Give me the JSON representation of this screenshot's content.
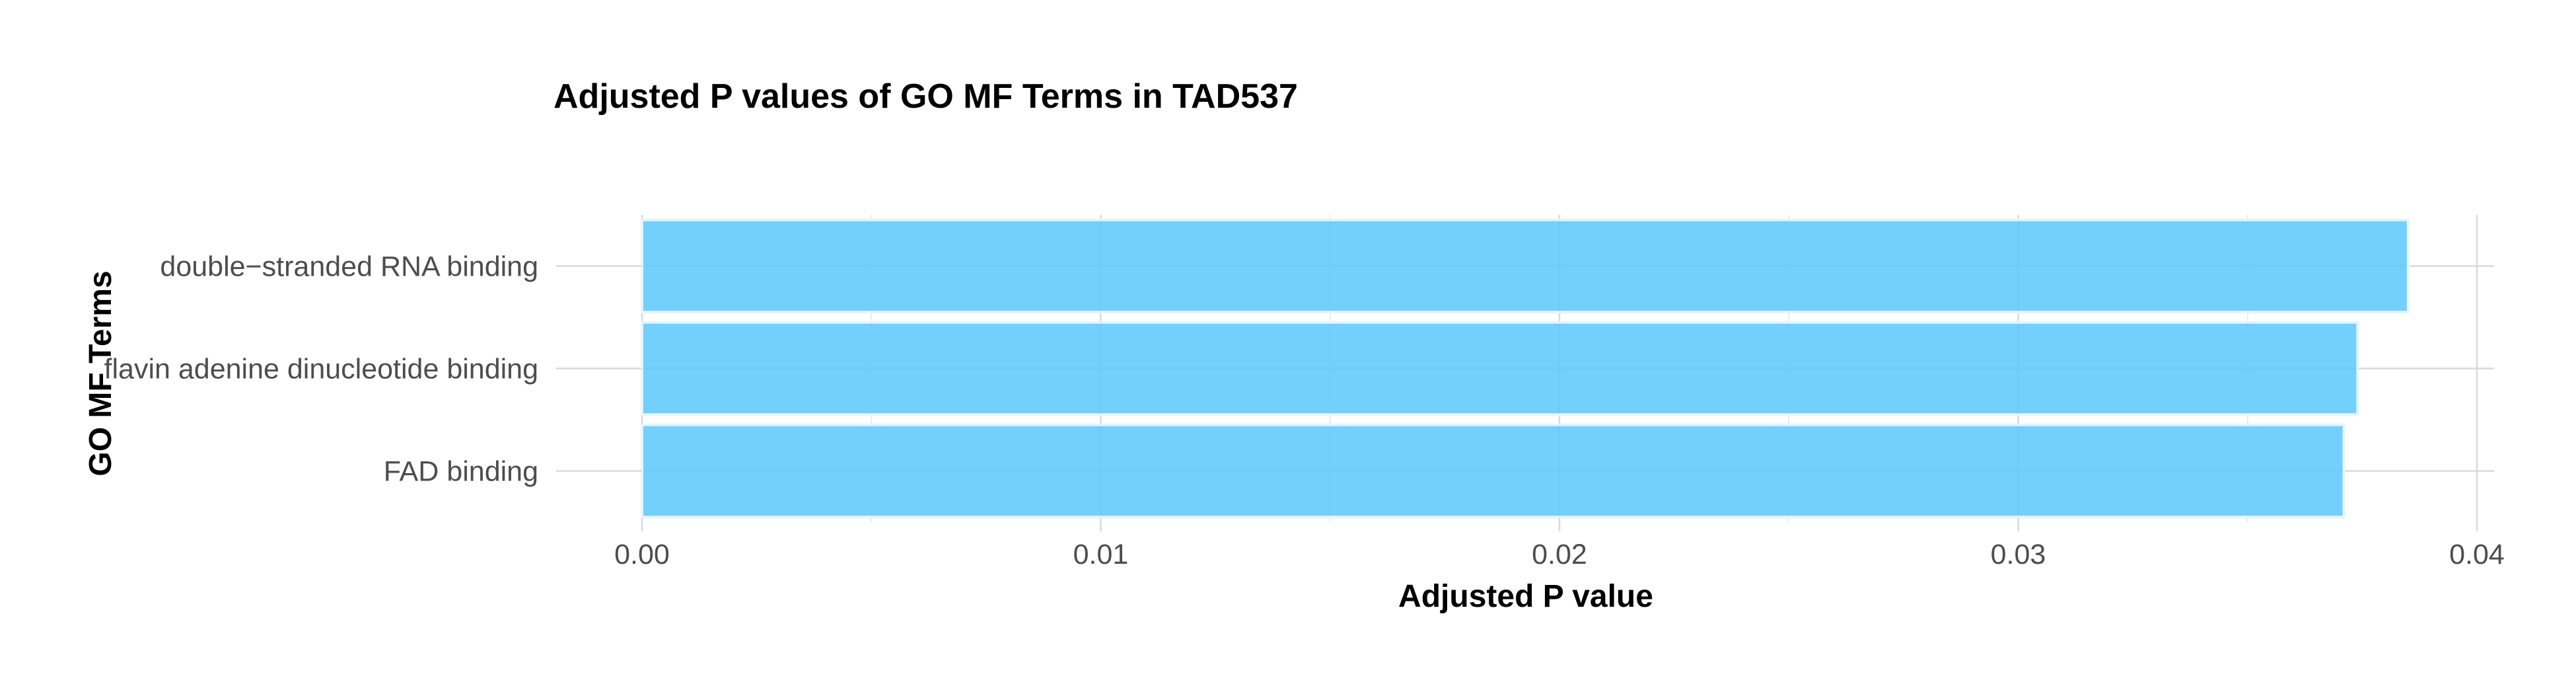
{
  "chart_data": {
    "type": "bar",
    "orientation": "horizontal",
    "title": "Adjusted P values of GO MF Terms in TAD537",
    "xlabel": "Adjusted P value",
    "ylabel": "GO MF Terms",
    "categories": [
      "double−stranded RNA binding",
      "flavin adenine dinucleotide binding",
      "FAD binding"
    ],
    "values": [
      0.0385,
      0.0374,
      0.0371
    ],
    "xlim": [
      0,
      0.04
    ],
    "xticks": [
      0,
      0.01,
      0.02,
      0.03,
      0.04
    ],
    "xtick_labels": [
      "0.00",
      "0.01",
      "0.02",
      "0.03",
      "0.04"
    ],
    "grid": true,
    "bar_color": "#5bc8fb"
  }
}
